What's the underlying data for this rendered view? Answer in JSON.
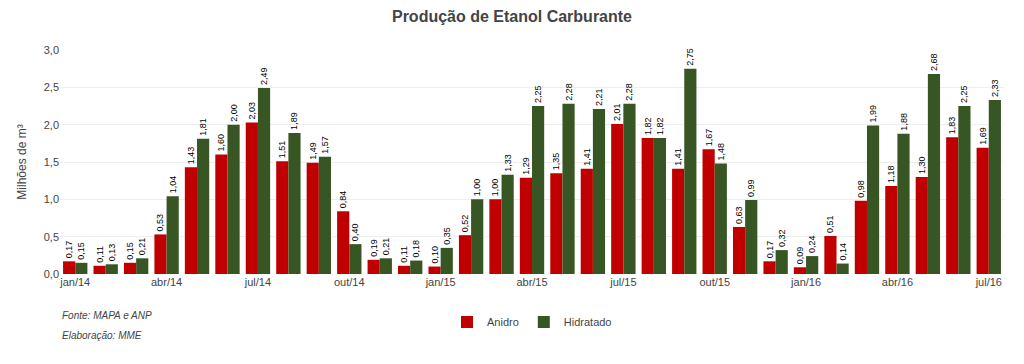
{
  "chart_data": {
    "type": "bar",
    "title": "Produção de Etanol Carburante",
    "ylabel": "Milhões de m³",
    "categories": [
      "jan/14",
      null,
      null,
      "abr/14",
      null,
      null,
      "jul/14",
      null,
      null,
      "out/14",
      null,
      null,
      "jan/15",
      null,
      null,
      "abr/15",
      null,
      null,
      "jul/15",
      null,
      null,
      "out/15",
      null,
      null,
      "jan/16",
      null,
      null,
      "abr/16",
      null,
      null,
      "jul/16"
    ],
    "series": [
      {
        "name": "Anidro",
        "color": "#C00000",
        "values": [
          0.17,
          0.11,
          0.15,
          0.53,
          1.43,
          1.6,
          2.03,
          1.51,
          1.49,
          0.84,
          0.19,
          0.11,
          0.1,
          0.52,
          1.0,
          1.29,
          1.35,
          1.41,
          2.01,
          1.82,
          1.41,
          1.67,
          0.63,
          0.17,
          0.09,
          0.51,
          0.98,
          1.18,
          1.3,
          1.83,
          1.69
        ],
        "value_labels": [
          "0,17",
          "0,11",
          "0,15",
          "0,53",
          "1,43",
          "1,60",
          "2,03",
          "1,51",
          "1,49",
          "0,84",
          "0,19",
          "0,11",
          "0,10",
          "0,52",
          "1,00",
          "1,29",
          "1,35",
          "1,41",
          "2,01",
          "1,82",
          "1,41",
          "1,67",
          "0,63",
          "0,17",
          "0,09",
          "0,51",
          "0,98",
          "1,18",
          "1,30",
          "1,83",
          "1,69"
        ]
      },
      {
        "name": "Hidratado",
        "color": "#375623",
        "values": [
          0.15,
          0.13,
          0.21,
          1.04,
          1.81,
          2.0,
          2.49,
          1.89,
          1.57,
          0.4,
          0.21,
          0.18,
          0.35,
          1.0,
          1.33,
          2.25,
          2.28,
          2.21,
          2.28,
          1.82,
          2.75,
          1.48,
          0.99,
          0.32,
          0.24,
          0.14,
          1.99,
          1.88,
          2.68,
          2.25,
          2.33
        ],
        "value_labels": [
          "0,15",
          "0,13",
          "0,21",
          "1,04",
          "1,81",
          "2,00",
          "2,49",
          "1,89",
          "1,57",
          "0,40",
          "0,21",
          "0,18",
          "0,35",
          "1,00",
          "1,33",
          "2,25",
          "2,28",
          "2,21",
          "2,28",
          "1,82",
          "2,75",
          "1,48",
          "0,99",
          "0,32",
          "0,24",
          "0,14",
          "1,99",
          "1,88",
          "2,68",
          "2,25",
          "2,33"
        ]
      }
    ],
    "ylim": [
      0.0,
      3.0
    ],
    "yticks": [
      {
        "value": 0.0,
        "label": "0,0"
      },
      {
        "value": 0.5,
        "label": "0,5"
      },
      {
        "value": 1.0,
        "label": "1,0"
      },
      {
        "value": 1.5,
        "label": "1,5"
      },
      {
        "value": 2.0,
        "label": "2,0"
      },
      {
        "value": 2.5,
        "label": "2,5"
      },
      {
        "value": 3.0,
        "label": "3,0"
      }
    ],
    "grid": true,
    "legend": "bottom",
    "data_labels": true,
    "annotations": [
      "Fonte: MAPA e ANP",
      "Elaboração: MME"
    ]
  }
}
